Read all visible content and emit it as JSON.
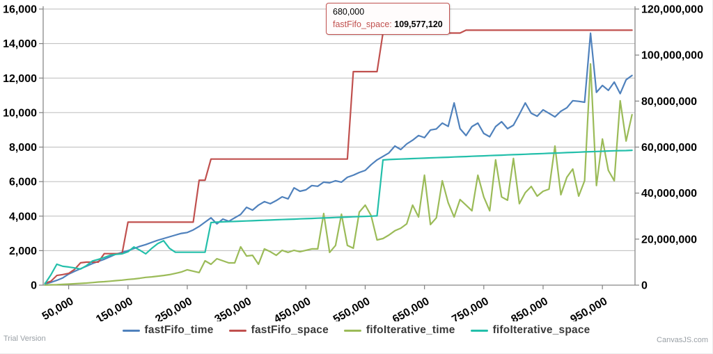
{
  "watermarks": {
    "trial": "Trial Version",
    "brand": "CanvasJS.com"
  },
  "tooltip": {
    "x_label": "680,000",
    "series_label": "fastFifo_space",
    "separator": ": ",
    "value": "109,577,120"
  },
  "colors": {
    "grid": "#bbbbbb",
    "axis_line": "#888888",
    "tick": "#808080",
    "tooltip_border": "#C0504E",
    "watermark": "#9aa0a6"
  },
  "chart_data": {
    "type": "line",
    "title": "",
    "xlabel": "",
    "ylabel_left": "",
    "ylabel_right": "",
    "grid": true,
    "legend_position": "bottom",
    "axes": {
      "left": {
        "range": [
          0,
          16000
        ],
        "ticks": [
          0,
          2000,
          4000,
          6000,
          8000,
          10000,
          12000,
          14000,
          16000
        ]
      },
      "right": {
        "range": [
          0,
          120000000
        ],
        "ticks": [
          0,
          20000000,
          40000000,
          60000000,
          80000000,
          100000000,
          120000000
        ]
      },
      "x": {
        "range": [
          7000,
          1005000
        ],
        "ticks": [
          50000,
          150000,
          250000,
          350000,
          450000,
          550000,
          650000,
          750000,
          850000,
          950000
        ],
        "label_angle": -30
      }
    },
    "x": [
      10000,
      20000,
      30000,
      40000,
      50000,
      60000,
      70000,
      80000,
      90000,
      100000,
      110000,
      120000,
      130000,
      140000,
      150000,
      160000,
      170000,
      180000,
      190000,
      200000,
      210000,
      220000,
      230000,
      240000,
      250000,
      260000,
      270000,
      280000,
      290000,
      300000,
      310000,
      320000,
      330000,
      340000,
      350000,
      360000,
      370000,
      380000,
      390000,
      400000,
      410000,
      420000,
      430000,
      440000,
      450000,
      460000,
      470000,
      480000,
      490000,
      500000,
      510000,
      520000,
      530000,
      540000,
      550000,
      560000,
      570000,
      580000,
      590000,
      600000,
      610000,
      620000,
      630000,
      640000,
      650000,
      660000,
      670000,
      680000,
      690000,
      700000,
      710000,
      720000,
      730000,
      740000,
      750000,
      760000,
      770000,
      780000,
      790000,
      800000,
      810000,
      820000,
      830000,
      840000,
      850000,
      860000,
      870000,
      880000,
      890000,
      900000,
      910000,
      920000,
      930000,
      940000,
      950000,
      960000,
      970000,
      980000,
      990000,
      1000000
    ],
    "series": [
      {
        "name": "fastFifo_time",
        "color": "#4F81BC",
        "axis": "left",
        "values": [
          60,
          160,
          280,
          420,
          640,
          800,
          950,
          1100,
          1250,
          1380,
          1500,
          1650,
          1800,
          1900,
          2000,
          2120,
          2250,
          2350,
          2480,
          2600,
          2700,
          2800,
          2900,
          3000,
          3050,
          3200,
          3400,
          3650,
          3900,
          3550,
          3830,
          3700,
          3900,
          4100,
          4510,
          4350,
          4640,
          4840,
          4720,
          4900,
          5120,
          5000,
          5640,
          5440,
          5520,
          5770,
          5730,
          5970,
          5930,
          6050,
          5970,
          6250,
          6370,
          6530,
          6650,
          6980,
          7260,
          7460,
          7660,
          8060,
          7860,
          8180,
          8400,
          8670,
          8550,
          8990,
          9050,
          9390,
          9200,
          10560,
          9070,
          8670,
          9190,
          9390,
          8790,
          8600,
          9190,
          9470,
          9070,
          9270,
          9900,
          10560,
          9960,
          9790,
          10160,
          9960,
          9750,
          10080,
          10280,
          10690,
          10650,
          10600,
          14600,
          11170,
          11570,
          11290,
          11770,
          11100,
          11900,
          12150
        ]
      },
      {
        "name": "fastFifo_space",
        "color": "#C0504E",
        "axis": "right",
        "values": [
          850000,
          1700000,
          4200000,
          4600000,
          5100000,
          6850000,
          9700000,
          10000000,
          10000000,
          10000000,
          13700000,
          13700000,
          13700000,
          13700000,
          27400000,
          27400000,
          27400000,
          27400000,
          27400000,
          27400000,
          27400000,
          27400000,
          27400000,
          27400000,
          27400000,
          27400000,
          45600000,
          45600000,
          54800000,
          54800000,
          54800000,
          54800000,
          54800000,
          54800000,
          54800000,
          54800000,
          54800000,
          54800000,
          54800000,
          54800000,
          54800000,
          54800000,
          54800000,
          54800000,
          54800000,
          54800000,
          54800000,
          54800000,
          54800000,
          54800000,
          54800000,
          54800000,
          92800000,
          92800000,
          92800000,
          92800000,
          92800000,
          109577120,
          109577120,
          109577120,
          109577120,
          109577120,
          109577120,
          109577120,
          109577120,
          109577120,
          109577120,
          109577120,
          109577120,
          109577120,
          109577120,
          110800000,
          110800000,
          110800000,
          110800000,
          110800000,
          110800000,
          110800000,
          110800000,
          110800000,
          110800000,
          110800000,
          110800000,
          110800000,
          110800000,
          110800000,
          110800000,
          110800000,
          110800000,
          110800000,
          110800000,
          110800000,
          110800000,
          110800000,
          110800000,
          110800000,
          110800000,
          110800000,
          110800000,
          110800000
        ]
      },
      {
        "name": "fifoIterative_time",
        "color": "#9BBB58",
        "axis": "left",
        "values": [
          10,
          20,
          30,
          45,
          60,
          80,
          100,
          120,
          150,
          180,
          200,
          230,
          260,
          290,
          330,
          360,
          400,
          450,
          480,
          520,
          560,
          610,
          680,
          760,
          890,
          810,
          730,
          1410,
          1210,
          1530,
          1410,
          1290,
          1290,
          2220,
          1690,
          1730,
          1210,
          2100,
          1940,
          1730,
          2020,
          1900,
          2020,
          1940,
          2020,
          2100,
          2100,
          4150,
          1900,
          2300,
          4110,
          2300,
          2140,
          4230,
          4640,
          4030,
          2620,
          2700,
          2900,
          3150,
          3300,
          3550,
          4640,
          3950,
          6370,
          3510,
          3900,
          6050,
          4770,
          3950,
          4960,
          4640,
          4310,
          6370,
          5110,
          4310,
          7260,
          5110,
          4920,
          7340,
          4720,
          5360,
          5720,
          5160,
          5440,
          5560,
          8060,
          5240,
          6250,
          6730,
          5160,
          6050,
          12820,
          5770,
          8470,
          6650,
          6050,
          10690,
          8350,
          9880
        ]
      },
      {
        "name": "fifoIterative_space",
        "color": "#23BFAA",
        "axis": "right",
        "values": [
          600000,
          4500000,
          9100000,
          8200000,
          7900000,
          7500000,
          7000000,
          8500000,
          10500000,
          11200000,
          12000000,
          13000000,
          13400000,
          13600000,
          14500000,
          16600000,
          15200000,
          13600000,
          16000000,
          18000000,
          19300000,
          16000000,
          14300000,
          14300000,
          14300000,
          14300000,
          14300000,
          14300000,
          27200000,
          27400000,
          27500000,
          27600000,
          27700000,
          27800000,
          27900000,
          28000000,
          28100000,
          28200000,
          28300000,
          28400000,
          28500000,
          28600000,
          28700000,
          28800000,
          28900000,
          29000000,
          29100000,
          29200000,
          29300000,
          29400000,
          29500000,
          29600000,
          29700000,
          29800000,
          29900000,
          30000000,
          30100000,
          54400000,
          54600000,
          54700000,
          54800000,
          54900000,
          55000000,
          55100000,
          55200000,
          55300000,
          55400000,
          55500000,
          55600000,
          55700000,
          55800000,
          55900000,
          56000000,
          56100000,
          56200000,
          56300000,
          56400000,
          56500000,
          56600000,
          56700000,
          56800000,
          56900000,
          57000000,
          57100000,
          57200000,
          57300000,
          57400000,
          57500000,
          57600000,
          57700000,
          57800000,
          57900000,
          58000000,
          58100000,
          58200000,
          58300000,
          58400000,
          58450000,
          58500000,
          58600000
        ]
      }
    ]
  }
}
